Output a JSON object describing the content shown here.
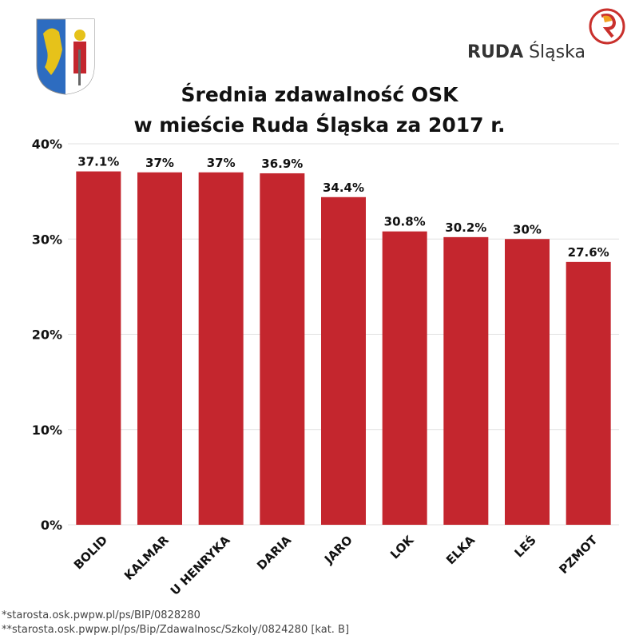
{
  "title_line1": "Średnia zdawalność OSK",
  "title_line2": "w mieście Ruda Śląska za 2017 r.",
  "logo": {
    "brand_bold": "RUDA",
    "brand_light": "Śląska",
    "accent": "#c9302c"
  },
  "footnotes": [
    "*starosta.osk.pwpw.pl/ps/BIP/0828280",
    "**starosta.osk.pwpw.pl/ps/Bip/Zdawalnosc/Szkoly/0824280 [kat. B]"
  ],
  "chart_data": {
    "type": "bar",
    "title": "Średnia zdawalność OSK w mieście Ruda Śląska za 2017 r.",
    "categories": [
      "BOLID",
      "KALMAR",
      "U HENRYKA",
      "DARIA",
      "JARO",
      "LOK",
      "ELKA",
      "LEŚ",
      "PZMOT"
    ],
    "values": [
      37.1,
      37,
      37,
      36.9,
      34.4,
      30.8,
      30.2,
      30,
      27.6
    ],
    "data_labels": [
      "37.1%",
      "37%",
      "37%",
      "36.9%",
      "34.4%",
      "30.8%",
      "30.2%",
      "30%",
      "27.6%"
    ],
    "ylim": [
      0,
      40
    ],
    "yticks": [
      0,
      10,
      20,
      30,
      40
    ],
    "ytick_labels": [
      "0%",
      "10%",
      "20%",
      "30%",
      "40%"
    ],
    "grid": true,
    "bar_color": "#c4262e"
  }
}
